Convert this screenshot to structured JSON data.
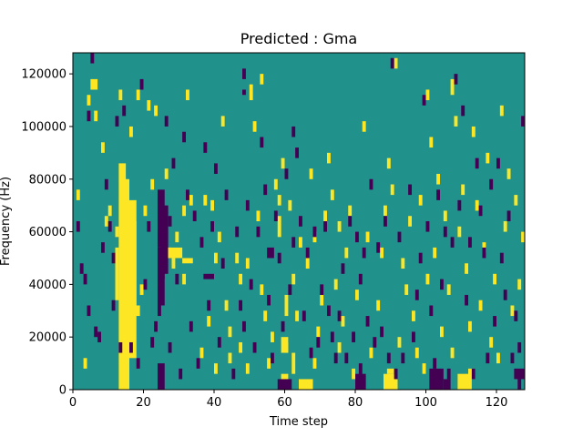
{
  "chart_data": {
    "type": "heatmap",
    "title": "Predicted : Gma",
    "xlabel": "Time step",
    "ylabel": "Frequency (Hz)",
    "xlim": [
      0,
      128
    ],
    "ylim": [
      0,
      128000
    ],
    "x_ticks": [
      0,
      20,
      40,
      60,
      80,
      100,
      120
    ],
    "y_ticks": [
      0,
      20000,
      40000,
      60000,
      80000,
      100000,
      120000
    ],
    "grid": false,
    "colormap": "viridis",
    "levels": [
      "low",
      "mid",
      "high"
    ],
    "colors": {
      "low": "#440154",
      "mid": "#21918c",
      "high": "#fde725"
    },
    "background_level": "mid",
    "freq_bin_hz": 2000,
    "blocks": [
      {
        "t0": 13,
        "t1": 15,
        "f0": 0,
        "f1": 86000,
        "level": "high"
      },
      {
        "t0": 14,
        "t1": 16,
        "f0": 0,
        "f1": 80000,
        "level": "high"
      },
      {
        "t0": 15,
        "t1": 18,
        "f0": 12000,
        "f1": 72000,
        "level": "high"
      },
      {
        "t0": 16,
        "t1": 18,
        "f0": 28000,
        "f1": 64000,
        "level": "high"
      },
      {
        "t0": 17,
        "t1": 19,
        "f0": 28000,
        "f1": 32000,
        "level": "high"
      },
      {
        "t0": 12,
        "t1": 13,
        "f0": 34000,
        "f1": 54000,
        "level": "high"
      },
      {
        "t0": 24,
        "t1": 26,
        "f0": 54000,
        "f1": 76000,
        "level": "low"
      },
      {
        "t0": 24,
        "t1": 26,
        "f0": 32000,
        "f1": 54000,
        "level": "low"
      },
      {
        "t0": 25,
        "t1": 27,
        "f0": 44000,
        "f1": 70000,
        "level": "low"
      },
      {
        "t0": 24,
        "t1": 26,
        "f0": 0,
        "f1": 10000,
        "level": "low"
      },
      {
        "t0": 27,
        "t1": 31,
        "f0": 50000,
        "f1": 54000,
        "level": "high"
      },
      {
        "t0": 28,
        "t1": 29,
        "f0": 46000,
        "f1": 50000,
        "level": "high"
      },
      {
        "t0": 31,
        "t1": 34,
        "f0": 48000,
        "f1": 50000,
        "level": "high"
      },
      {
        "t0": 37,
        "t1": 40,
        "f0": 42000,
        "f1": 44000,
        "level": "low"
      },
      {
        "t0": 55,
        "t1": 57,
        "f0": 50000,
        "f1": 54000,
        "level": "low"
      },
      {
        "t0": 59,
        "t1": 61,
        "f0": 14000,
        "f1": 20000,
        "level": "high"
      },
      {
        "t0": 59,
        "t1": 61,
        "f0": 0,
        "f1": 6000,
        "level": "high"
      },
      {
        "t0": 58,
        "t1": 59,
        "f0": 58000,
        "f1": 66000,
        "level": "high"
      },
      {
        "t0": 60,
        "t1": 61,
        "f0": 28000,
        "f1": 36000,
        "level": "high"
      },
      {
        "t0": 62,
        "t1": 63,
        "f0": 6000,
        "f1": 14000,
        "level": "high"
      },
      {
        "t0": 64,
        "t1": 68,
        "f0": 0,
        "f1": 4000,
        "level": "high"
      },
      {
        "t0": 58,
        "t1": 62,
        "f0": 0,
        "f1": 4000,
        "level": "low"
      },
      {
        "t0": 62,
        "t1": 63,
        "f0": 96000,
        "f1": 100000,
        "level": "low"
      },
      {
        "t0": 80,
        "t1": 83,
        "f0": 0,
        "f1": 6000,
        "level": "low"
      },
      {
        "t0": 81,
        "t1": 82,
        "f0": 4000,
        "f1": 10000,
        "level": "low"
      },
      {
        "t0": 88,
        "t1": 92,
        "f0": 0,
        "f1": 6000,
        "level": "high"
      },
      {
        "t0": 89,
        "t1": 91,
        "f0": 6000,
        "f1": 8000,
        "level": "high"
      },
      {
        "t0": 101,
        "t1": 105,
        "f0": 0,
        "f1": 8000,
        "level": "low"
      },
      {
        "t0": 105,
        "t1": 107,
        "f0": 0,
        "f1": 4000,
        "level": "low"
      },
      {
        "t0": 109,
        "t1": 113,
        "f0": 0,
        "f1": 6000,
        "level": "high"
      },
      {
        "t0": 112,
        "t1": 114,
        "f0": 4000,
        "f1": 8000,
        "level": "high"
      },
      {
        "t0": 125,
        "t1": 128,
        "f0": 4000,
        "f1": 8000,
        "level": "low"
      },
      {
        "t0": 126,
        "t1": 127,
        "f0": 0,
        "f1": 4000,
        "level": "low"
      },
      {
        "t0": 5,
        "t1": 7,
        "f0": 114000,
        "f1": 118000,
        "level": "high"
      },
      {
        "t0": 48,
        "t1": 49,
        "f0": 112000,
        "f1": 114000,
        "level": "low"
      },
      {
        "t0": 50,
        "t1": 51,
        "f0": 114000,
        "f1": 116000,
        "level": "high"
      },
      {
        "t0": 107,
        "t1": 108,
        "f0": 112000,
        "f1": 118000,
        "level": "high"
      }
    ],
    "points": {
      "high": [
        [
          1,
          72
        ],
        [
          3,
          8
        ],
        [
          4,
          108
        ],
        [
          6,
          102
        ],
        [
          8,
          90
        ],
        [
          9,
          62
        ],
        [
          10,
          66
        ],
        [
          12,
          58
        ],
        [
          13,
          110
        ],
        [
          16,
          96
        ],
        [
          18,
          110
        ],
        [
          19,
          36
        ],
        [
          20,
          66
        ],
        [
          21,
          106
        ],
        [
          22,
          76
        ],
        [
          23,
          104
        ],
        [
          26,
          80
        ],
        [
          27,
          50
        ],
        [
          29,
          56
        ],
        [
          31,
          66
        ],
        [
          31,
          40
        ],
        [
          32,
          110
        ],
        [
          33,
          70
        ],
        [
          36,
          12
        ],
        [
          37,
          70
        ],
        [
          38,
          24
        ],
        [
          39,
          68
        ],
        [
          40,
          6
        ],
        [
          40,
          48
        ],
        [
          41,
          56
        ],
        [
          42,
          100
        ],
        [
          43,
          30
        ],
        [
          44,
          20
        ],
        [
          44,
          10
        ],
        [
          46,
          48
        ],
        [
          47,
          40
        ],
        [
          47,
          14
        ],
        [
          49,
          46
        ],
        [
          49,
          6
        ],
        [
          50,
          110
        ],
        [
          51,
          98
        ],
        [
          52,
          64
        ],
        [
          53,
          116
        ],
        [
          53,
          36
        ],
        [
          54,
          26
        ],
        [
          55,
          8
        ],
        [
          56,
          18
        ],
        [
          57,
          76
        ],
        [
          58,
          70
        ],
        [
          59,
          84
        ],
        [
          60,
          14
        ],
        [
          61,
          68
        ],
        [
          62,
          40
        ],
        [
          63,
          26
        ],
        [
          64,
          54
        ],
        [
          66,
          46
        ],
        [
          67,
          80
        ],
        [
          68,
          56
        ],
        [
          68,
          8
        ],
        [
          69,
          20
        ],
        [
          70,
          32
        ],
        [
          71,
          64
        ],
        [
          72,
          86
        ],
        [
          73,
          72
        ],
        [
          74,
          38
        ],
        [
          75,
          60
        ],
        [
          75,
          14
        ],
        [
          76,
          24
        ],
        [
          77,
          50
        ],
        [
          78,
          66
        ],
        [
          79,
          4
        ],
        [
          80,
          34
        ],
        [
          82,
          98
        ],
        [
          83,
          56
        ],
        [
          84,
          12
        ],
        [
          86,
          30
        ],
        [
          87,
          50
        ],
        [
          88,
          66
        ],
        [
          89,
          84
        ],
        [
          90,
          74
        ],
        [
          91,
          122
        ],
        [
          92,
          16
        ],
        [
          93,
          46
        ],
        [
          94,
          36
        ],
        [
          95,
          62
        ],
        [
          96,
          26
        ],
        [
          97,
          12
        ],
        [
          98,
          70
        ],
        [
          99,
          6
        ],
        [
          100,
          40
        ],
        [
          100,
          110
        ],
        [
          101,
          92
        ],
        [
          102,
          50
        ],
        [
          103,
          78
        ],
        [
          104,
          20
        ],
        [
          105,
          64
        ],
        [
          106,
          36
        ],
        [
          107,
          12
        ],
        [
          108,
          100
        ],
        [
          109,
          58
        ],
        [
          110,
          74
        ],
        [
          111,
          44
        ],
        [
          112,
          22
        ],
        [
          113,
          96
        ],
        [
          114,
          68
        ],
        [
          115,
          30
        ],
        [
          116,
          52
        ],
        [
          117,
          86
        ],
        [
          118,
          16
        ],
        [
          119,
          40
        ],
        [
          120,
          10
        ],
        [
          121,
          104
        ],
        [
          122,
          60
        ],
        [
          123,
          80
        ],
        [
          124,
          28
        ],
        [
          125,
          70
        ],
        [
          126,
          38
        ],
        [
          127,
          56
        ]
      ],
      "low": [
        [
          1,
          60
        ],
        [
          2,
          44
        ],
        [
          3,
          40
        ],
        [
          4,
          28
        ],
        [
          4,
          102
        ],
        [
          5,
          124
        ],
        [
          6,
          20
        ],
        [
          7,
          18
        ],
        [
          8,
          52
        ],
        [
          9,
          76
        ],
        [
          10,
          60
        ],
        [
          11,
          30
        ],
        [
          11,
          48
        ],
        [
          12,
          100
        ],
        [
          13,
          14
        ],
        [
          14,
          104
        ],
        [
          16,
          14
        ],
        [
          18,
          8
        ],
        [
          19,
          114
        ],
        [
          20,
          38
        ],
        [
          21,
          60
        ],
        [
          22,
          16
        ],
        [
          23,
          22
        ],
        [
          24,
          28
        ],
        [
          25,
          42
        ],
        [
          26,
          100
        ],
        [
          27,
          62
        ],
        [
          27,
          14
        ],
        [
          28,
          84
        ],
        [
          29,
          40
        ],
        [
          30,
          4
        ],
        [
          31,
          94
        ],
        [
          32,
          72
        ],
        [
          33,
          22
        ],
        [
          34,
          64
        ],
        [
          35,
          8
        ],
        [
          36,
          54
        ],
        [
          37,
          90
        ],
        [
          38,
          30
        ],
        [
          39,
          60
        ],
        [
          40,
          82
        ],
        [
          41,
          16
        ],
        [
          42,
          46
        ],
        [
          43,
          72
        ],
        [
          45,
          4
        ],
        [
          46,
          58
        ],
        [
          47,
          30
        ],
        [
          48,
          22
        ],
        [
          48,
          118
        ],
        [
          49,
          68
        ],
        [
          50,
          38
        ],
        [
          51,
          14
        ],
        [
          52,
          58
        ],
        [
          53,
          92
        ],
        [
          54,
          74
        ],
        [
          55,
          32
        ],
        [
          56,
          10
        ],
        [
          57,
          64
        ],
        [
          58,
          48
        ],
        [
          59,
          22
        ],
        [
          60,
          80
        ],
        [
          61,
          36
        ],
        [
          62,
          54
        ],
        [
          63,
          88
        ],
        [
          64,
          62
        ],
        [
          65,
          26
        ],
        [
          66,
          50
        ],
        [
          67,
          12
        ],
        [
          68,
          58
        ],
        [
          69,
          16
        ],
        [
          70,
          36
        ],
        [
          71,
          60
        ],
        [
          72,
          28
        ],
        [
          73,
          18
        ],
        [
          74,
          10
        ],
        [
          75,
          26
        ],
        [
          76,
          44
        ],
        [
          77,
          10
        ],
        [
          78,
          62
        ],
        [
          79,
          18
        ],
        [
          80,
          56
        ],
        [
          81,
          40
        ],
        [
          82,
          50
        ],
        [
          83,
          24
        ],
        [
          84,
          76
        ],
        [
          85,
          16
        ],
        [
          86,
          52
        ],
        [
          87,
          20
        ],
        [
          88,
          62
        ],
        [
          89,
          10
        ],
        [
          90,
          122
        ],
        [
          91,
          4
        ],
        [
          92,
          56
        ],
        [
          93,
          10
        ],
        [
          95,
          74
        ],
        [
          96,
          18
        ],
        [
          97,
          34
        ],
        [
          98,
          48
        ],
        [
          99,
          108
        ],
        [
          100,
          60
        ],
        [
          101,
          28
        ],
        [
          102,
          8
        ],
        [
          103,
          72
        ],
        [
          104,
          38
        ],
        [
          105,
          58
        ],
        [
          106,
          4
        ],
        [
          107,
          54
        ],
        [
          108,
          116
        ],
        [
          109,
          68
        ],
        [
          110,
          104
        ],
        [
          111,
          32
        ],
        [
          112,
          54
        ],
        [
          113,
          4
        ],
        [
          114,
          84
        ],
        [
          115,
          66
        ],
        [
          116,
          50
        ],
        [
          117,
          10
        ],
        [
          118,
          76
        ],
        [
          119,
          24
        ],
        [
          120,
          84
        ],
        [
          121,
          48
        ],
        [
          122,
          34
        ],
        [
          123,
          64
        ],
        [
          124,
          10
        ],
        [
          125,
          26
        ],
        [
          126,
          14
        ],
        [
          127,
          100
        ]
      ]
    }
  }
}
